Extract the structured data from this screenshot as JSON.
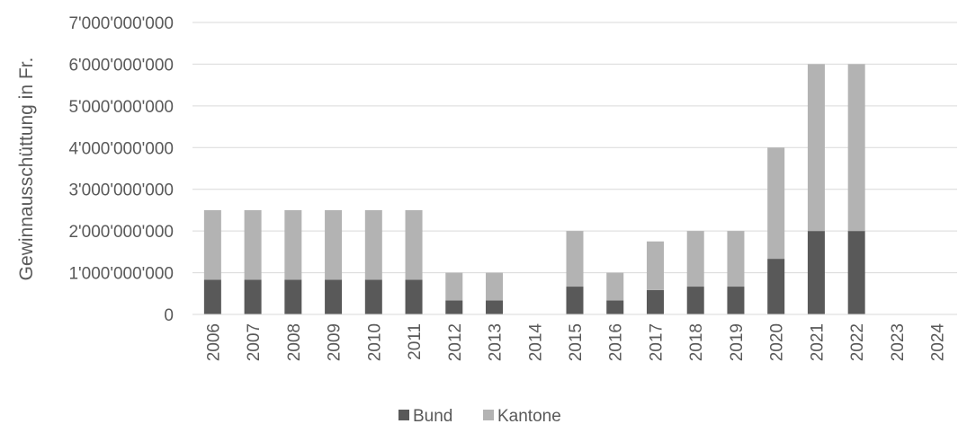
{
  "chart_data": {
    "type": "bar",
    "stacked": true,
    "ylabel": "Gewinnausschüttung in Fr.",
    "xlabel": "",
    "ylim": [
      0,
      7000000000
    ],
    "yticks": [
      0,
      1000000000,
      2000000000,
      3000000000,
      4000000000,
      5000000000,
      6000000000,
      7000000000
    ],
    "ytick_labels": [
      "0",
      "1'000'000'000",
      "2'000'000'000",
      "3'000'000'000",
      "4'000'000'000",
      "5'000'000'000",
      "6'000'000'000",
      "7'000'000'000"
    ],
    "categories": [
      "2006",
      "2007",
      "2008",
      "2009",
      "2010",
      "2011",
      "2012",
      "2013",
      "2014",
      "2015",
      "2016",
      "2017",
      "2018",
      "2019",
      "2020",
      "2021",
      "2022",
      "2023",
      "2024"
    ],
    "series": [
      {
        "name": "Bund",
        "color": "#595959",
        "values": [
          833333333,
          833333333,
          833333333,
          833333333,
          833333333,
          833333333,
          333333333,
          333333333,
          0,
          666666667,
          333333333,
          583333333,
          666666667,
          666666667,
          1333333333,
          2000000000,
          2000000000,
          0,
          0
        ]
      },
      {
        "name": "Kantone",
        "color": "#b3b3b3",
        "values": [
          1666666667,
          1666666667,
          1666666667,
          1666666667,
          1666666667,
          1666666667,
          666666667,
          666666667,
          0,
          1333333333,
          666666667,
          1166666667,
          1333333333,
          1333333333,
          2666666667,
          4000000000,
          4000000000,
          0,
          0
        ]
      }
    ],
    "grid": true,
    "legend_position": "bottom"
  }
}
